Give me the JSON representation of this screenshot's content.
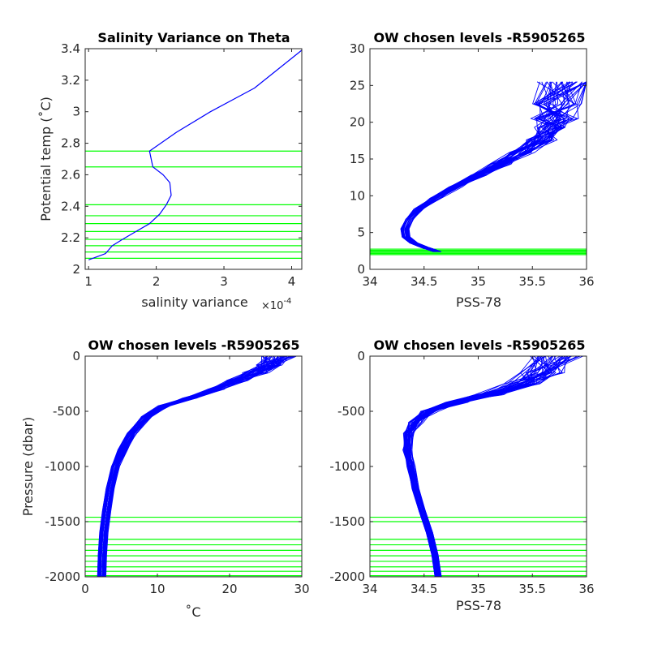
{
  "colors": {
    "profile": "#0000ff",
    "levels": "#00ff00",
    "axis": "#262626",
    "background": "#ffffff"
  },
  "chart_data": [
    {
      "id": "p1",
      "type": "line",
      "title": "Salinity Variance on Theta",
      "xlabel": "salinity variance",
      "x_exponent_label": "×10",
      "x_exponent_power": "-4",
      "ylabel": "Potential temp (˚C)",
      "xlim": [
        0.95,
        4.15
      ],
      "ylim": [
        2.0,
        3.4
      ],
      "xticks": [
        1,
        2,
        3,
        4
      ],
      "xticklabels": [
        "1",
        "2",
        "3",
        "4"
      ],
      "yticks": [
        2,
        2.2,
        2.4,
        2.6,
        2.8,
        3,
        3.2,
        3.4
      ],
      "yticklabels": [
        "2",
        "2.2",
        "2.4",
        "2.6",
        "2.8",
        "3",
        "3.2",
        "3.4"
      ],
      "series": [
        {
          "x": [
            1.0,
            1.25,
            1.35,
            1.5,
            1.7,
            1.9,
            2.05,
            2.15,
            2.22,
            2.2,
            2.1,
            1.95,
            1.9,
            2.3,
            2.8,
            3.45,
            4.15
          ],
          "y": [
            2.06,
            2.1,
            2.15,
            2.19,
            2.24,
            2.29,
            2.35,
            2.41,
            2.47,
            2.55,
            2.6,
            2.65,
            2.75,
            2.87,
            3.0,
            3.15,
            3.39
          ]
        }
      ],
      "hlines": [
        2.07,
        2.11,
        2.15,
        2.19,
        2.24,
        2.29,
        2.34,
        2.41,
        2.65,
        2.75
      ]
    },
    {
      "id": "p2",
      "type": "line",
      "title": "OW chosen levels -R5905265",
      "xlabel": "PSS-78",
      "ylabel": "",
      "xlim": [
        34,
        36
      ],
      "ylim": [
        0,
        30
      ],
      "xticks": [
        34,
        34.5,
        35,
        35.5,
        36
      ],
      "xticklabels": [
        "34",
        "34.5",
        "35",
        "35.5",
        "36"
      ],
      "yticks": [
        0,
        5,
        10,
        15,
        20,
        25,
        30
      ],
      "yticklabels": [
        "0",
        "5",
        "10",
        "15",
        "20",
        "25",
        "30"
      ],
      "series": [
        {
          "x": [
            34.62,
            34.5,
            34.4,
            34.33,
            34.32,
            34.36,
            34.45,
            34.6,
            34.78,
            35.0,
            35.2,
            35.4,
            35.58,
            35.68,
            35.7,
            35.74,
            35.85
          ],
          "y": [
            2.4,
            3.0,
            3.6,
            4.4,
            5.5,
            6.8,
            8.2,
            9.7,
            11.2,
            12.8,
            14.3,
            15.9,
            17.6,
            19.3,
            20.5,
            22.5,
            25.5
          ]
        }
      ],
      "cloud": {
        "x_spread": 0.04,
        "surface_spread": 0.3
      },
      "hlines": [
        2.0,
        2.15,
        2.3,
        2.45,
        2.6,
        2.75
      ]
    },
    {
      "id": "p3",
      "type": "line",
      "title": "OW chosen levels -R5905265",
      "xlabel": "˚C",
      "ylabel": "Pressure (dbar)",
      "xlim": [
        0,
        30
      ],
      "ylim": [
        -2000,
        0
      ],
      "xticks": [
        0,
        10,
        20,
        30
      ],
      "xticklabels": [
        "0",
        "10",
        "20",
        "30"
      ],
      "yticks": [
        -2000,
        -1500,
        -1000,
        -500,
        0
      ],
      "yticklabels": [
        "-2000",
        "-1500",
        "-1000",
        "-500",
        "0"
      ],
      "series": [
        {
          "x": [
            2.3,
            2.4,
            2.6,
            3.0,
            3.5,
            4.2,
            5.2,
            6.5,
            8.5,
            11.0,
            14.5,
            18.0,
            21.0,
            23.5,
            25.5,
            27.0
          ],
          "y": [
            -2000,
            -1800,
            -1600,
            -1400,
            -1200,
            -1000,
            -850,
            -700,
            -550,
            -450,
            -380,
            -300,
            -220,
            -150,
            -80,
            0
          ]
        }
      ],
      "cloud": {
        "x_spread": 0.6,
        "surface_spread": 2.5
      },
      "hlines": [
        -1460,
        -1500,
        -1660,
        -1710,
        -1760,
        -1810,
        -1860,
        -1910,
        -1950,
        -1990
      ]
    },
    {
      "id": "p4",
      "type": "line",
      "title": "OW chosen levels -R5905265",
      "xlabel": "PSS-78",
      "ylabel": "",
      "xlim": [
        34,
        36
      ],
      "ylim": [
        -2000,
        0
      ],
      "xticks": [
        34,
        34.5,
        35,
        35.5,
        36
      ],
      "xticklabels": [
        "34",
        "34.5",
        "35",
        "35.5",
        "36"
      ],
      "yticks": [
        -2000,
        -1500,
        -1000,
        -500,
        0
      ],
      "yticklabels": [
        "-2000",
        "-1500",
        "-1000",
        "-500",
        "0"
      ],
      "series": [
        {
          "x": [
            34.63,
            34.6,
            34.55,
            34.48,
            34.42,
            34.38,
            34.35,
            34.36,
            34.42,
            34.55,
            34.8,
            35.1,
            35.4,
            35.6,
            35.72
          ],
          "y": [
            -2000,
            -1800,
            -1600,
            -1400,
            -1200,
            -1000,
            -850,
            -700,
            -600,
            -500,
            -420,
            -350,
            -250,
            -150,
            0
          ]
        }
      ],
      "cloud": {
        "x_spread": 0.03,
        "surface_spread": 0.25
      },
      "hlines": [
        -1460,
        -1500,
        -1660,
        -1710,
        -1760,
        -1810,
        -1860,
        -1910,
        -1950,
        -1990
      ]
    }
  ]
}
